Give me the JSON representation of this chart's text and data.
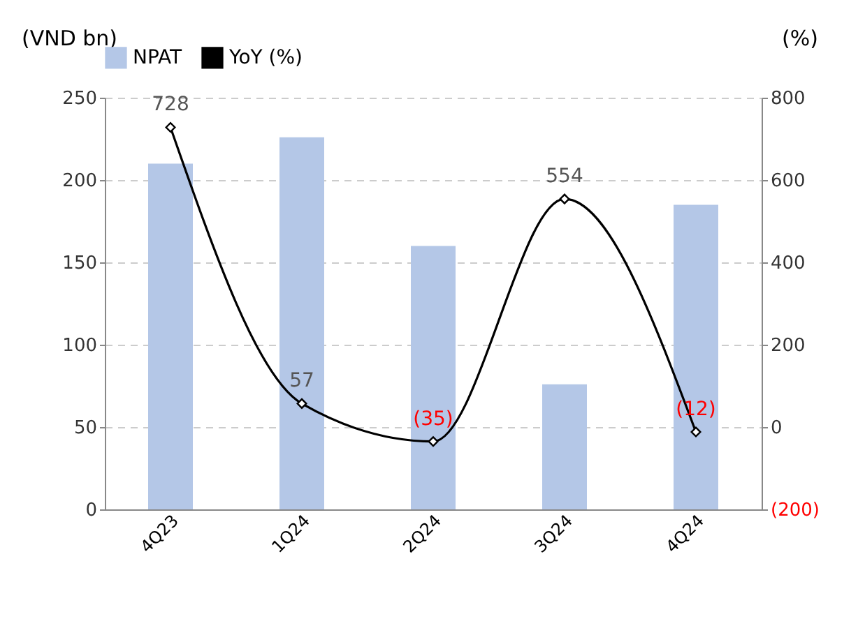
{
  "chart_data": {
    "type": "bar",
    "ylabel": "(VND bn)",
    "y2label": "(%)",
    "categories": [
      "4Q23",
      "1Q24",
      "2Q24",
      "3Q24",
      "4Q24"
    ],
    "series": [
      {
        "name": "NPAT",
        "color": "#b4c7e7",
        "values": [
          210,
          226,
          160,
          76,
          185
        ]
      },
      {
        "name": "YoY (%)",
        "type": "line",
        "axis": "y2",
        "color": "#000000",
        "marker": "diamond",
        "values": [
          728,
          57,
          -35,
          554,
          -12
        ],
        "value_labels": [
          "728",
          "57",
          "(35)",
          "554",
          "(12)"
        ]
      }
    ],
    "ylim": [
      0,
      250
    ],
    "yticks": [
      0,
      50,
      100,
      150,
      200,
      250
    ],
    "y2lim": [
      -200,
      800
    ],
    "y2ticks": [
      {
        "value": -200,
        "label": "(200)"
      },
      0,
      200,
      400,
      600,
      800
    ],
    "grid": "y",
    "legend": "top"
  }
}
